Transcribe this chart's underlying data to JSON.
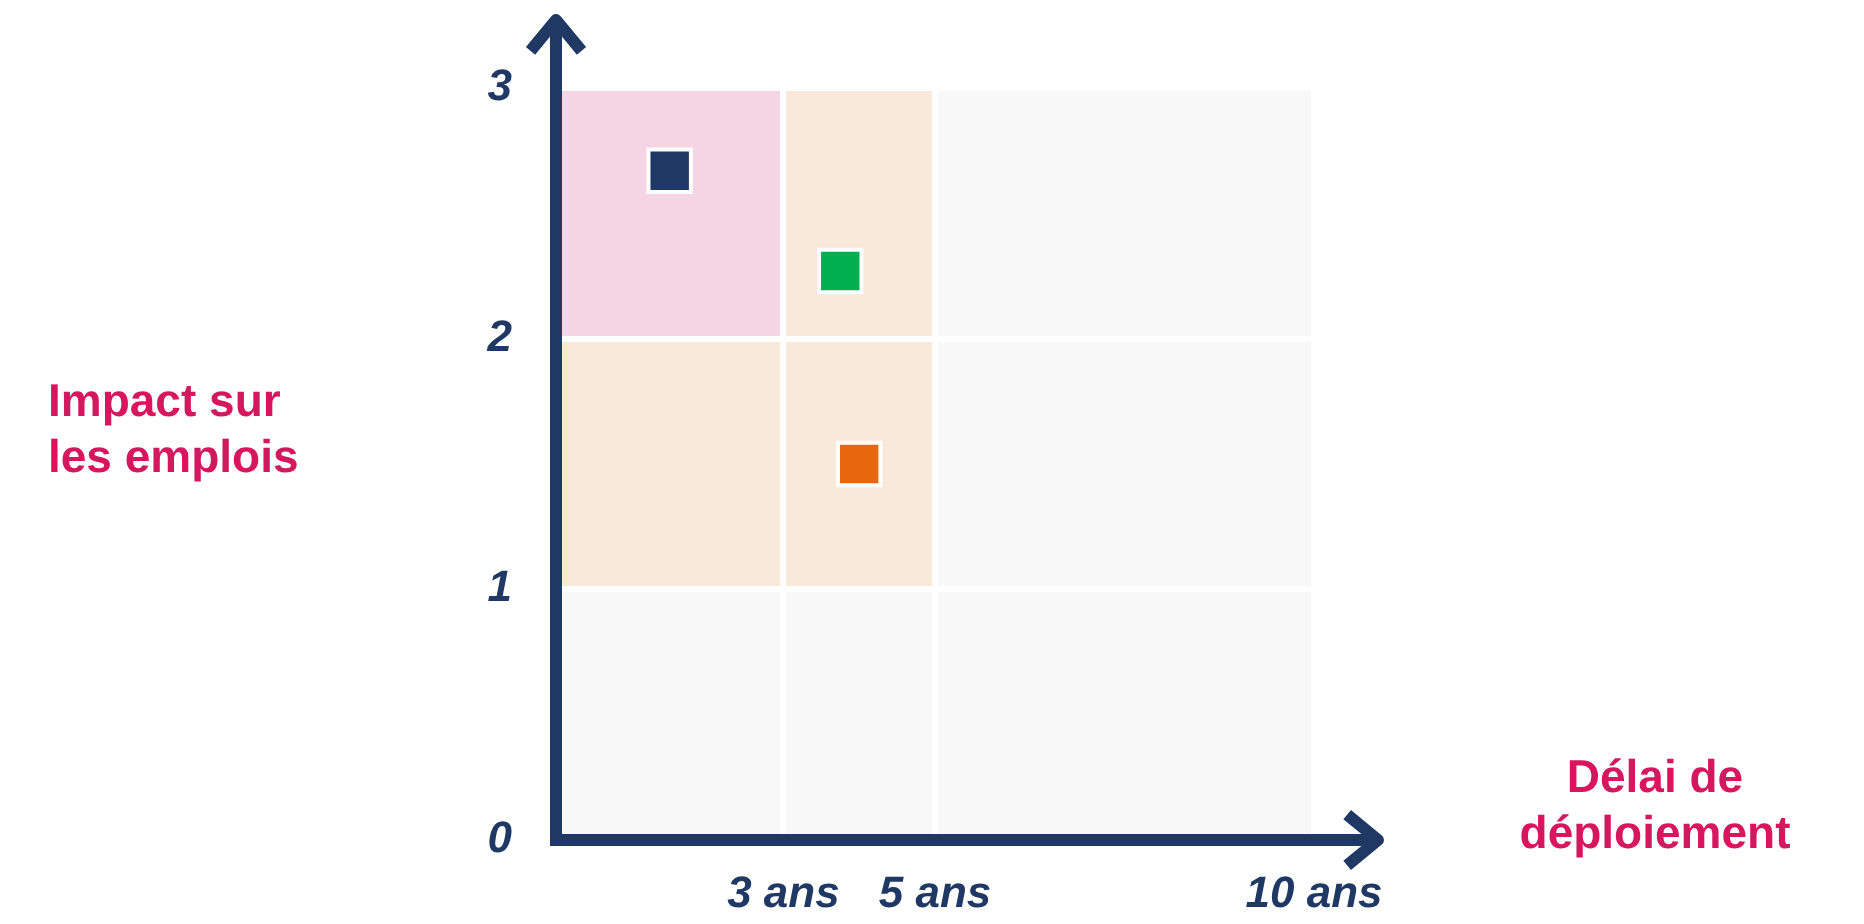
{
  "chart_data": {
    "type": "scatter",
    "xlabel": "Délai de déploiement",
    "ylabel": "Impact sur les emplois",
    "marker": "square",
    "grid": true,
    "xlim": [
      0,
      10
    ],
    "ylim": [
      0,
      3
    ],
    "xticks": [
      {
        "value": 3,
        "label": "3 ans"
      },
      {
        "value": 5,
        "label": "5 ans"
      },
      {
        "value": 10,
        "label": "10 ans"
      }
    ],
    "yticks": [
      0,
      1,
      2,
      3
    ],
    "series": [
      {
        "color": "#1f3864",
        "x": [
          1.5
        ],
        "values": [
          2.67
        ]
      },
      {
        "color": "#00b050",
        "x": [
          3.75
        ],
        "values": [
          2.27
        ]
      },
      {
        "color": "#e8660e",
        "x": [
          4
        ],
        "values": [
          1.5
        ]
      }
    ]
  }
}
